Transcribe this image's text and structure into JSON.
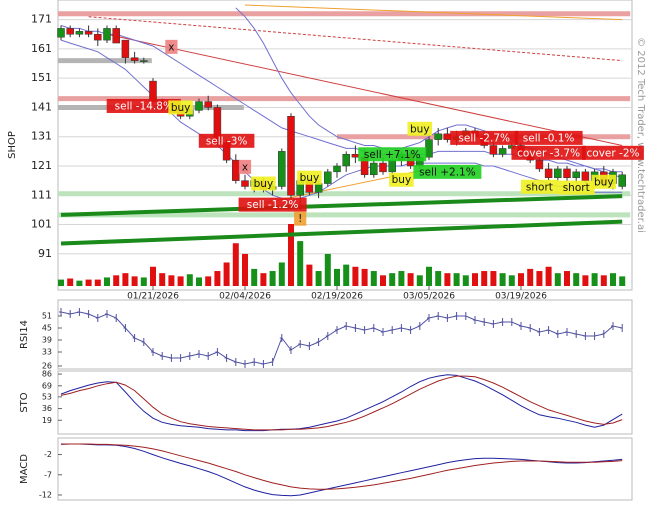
{
  "watermark": "© 2012 Tech Trader, www.techtrader.ai",
  "chart_data": [
    {
      "type": "candlestick",
      "ylabel": "SHOP",
      "categories": [
        null,
        null,
        null,
        null,
        null,
        null,
        null,
        null,
        null,
        null,
        "01/21/2026",
        null,
        null,
        null,
        null,
        null,
        null,
        null,
        null,
        null,
        "02/04/2026",
        null,
        null,
        null,
        null,
        null,
        null,
        null,
        null,
        null,
        "02/19/2026",
        null,
        null,
        null,
        null,
        null,
        null,
        null,
        null,
        null,
        "03/05/2026",
        null,
        null,
        null,
        null,
        null,
        null,
        null,
        null,
        null,
        "03/19/2026",
        null,
        null,
        null,
        null,
        null,
        null,
        null,
        null,
        null,
        null,
        null
      ],
      "open": [
        165,
        168,
        166,
        167,
        166,
        164,
        168,
        164,
        158,
        157,
        150,
        143,
        141,
        140,
        138,
        140,
        143,
        141,
        129,
        123,
        116,
        114,
        116,
        113,
        114,
        138,
        111,
        116,
        112,
        115,
        119,
        121,
        125,
        124,
        118,
        122,
        119,
        123,
        125,
        121,
        124,
        130,
        132,
        130,
        131,
        133,
        131,
        128,
        125,
        127,
        128,
        125,
        123,
        120,
        117,
        120,
        117,
        119,
        116,
        119,
        115,
        114
      ],
      "high": [
        169,
        169,
        168,
        169,
        168,
        169,
        169,
        164,
        160,
        158,
        151,
        144,
        143,
        142,
        141,
        144,
        145,
        142,
        130,
        125,
        118,
        117,
        117,
        115,
        127,
        139,
        117,
        117,
        116,
        120,
        122,
        126,
        128,
        127,
        123,
        124,
        124,
        126,
        126,
        125,
        131,
        134,
        134,
        133,
        134,
        134,
        133,
        129,
        128,
        129,
        129,
        126,
        124,
        122,
        121,
        121,
        120,
        120,
        120,
        121,
        120,
        119
      ],
      "low": [
        164,
        165,
        165,
        165,
        162,
        163,
        163,
        156,
        156,
        156,
        142,
        140,
        139,
        137,
        137,
        139,
        140,
        128,
        122,
        115,
        113,
        112,
        112,
        111,
        113,
        110,
        106,
        111,
        110,
        114,
        117,
        119,
        122,
        117,
        117,
        118,
        118,
        121,
        120,
        120,
        123,
        128,
        129,
        128,
        129,
        130,
        127,
        124,
        124,
        125,
        124,
        122,
        119,
        116,
        116,
        116,
        115,
        115,
        115,
        114,
        113,
        113
      ],
      "close": [
        168,
        166,
        167,
        166,
        164,
        168,
        163,
        158,
        157,
        157,
        143,
        141,
        140,
        138,
        140,
        143,
        141,
        129,
        123,
        116,
        114,
        116,
        113,
        114,
        126,
        111,
        116,
        112,
        115,
        119,
        121,
        125,
        124,
        118,
        122,
        119,
        123,
        125,
        121,
        124,
        130,
        132,
        130,
        131,
        133,
        131,
        128,
        125,
        127,
        128,
        125,
        123,
        120,
        117,
        120,
        117,
        119,
        116,
        119,
        115,
        119,
        118
      ],
      "volume": [
        6,
        7,
        5,
        6,
        6,
        8,
        10,
        12,
        9,
        8,
        18,
        12,
        10,
        9,
        11,
        8,
        9,
        14,
        22,
        40,
        30,
        16,
        12,
        14,
        22,
        58,
        42,
        20,
        14,
        30,
        16,
        20,
        18,
        16,
        14,
        10,
        12,
        14,
        12,
        10,
        18,
        14,
        12,
        12,
        10,
        12,
        14,
        14,
        12,
        10,
        12,
        16,
        14,
        18,
        12,
        14,
        12,
        10,
        12,
        10,
        12,
        9
      ],
      "up_color": "#17901a",
      "down_color": "#e01010",
      "ylim": [
        80,
        176
      ],
      "yticks": [
        91,
        101,
        111,
        121,
        131,
        141,
        151,
        161,
        171
      ],
      "grid": true,
      "levels": [
        {
          "price": 173,
          "color": "#e8a0a0",
          "from": 0,
          "to": 61
        },
        {
          "price": 144,
          "color": "#e8a0a0",
          "from": 0,
          "to": 61
        },
        {
          "price": 131,
          "color": "#e8a0a0",
          "from": 30,
          "to": 61
        },
        {
          "price": 157,
          "color": "#b4b4b4",
          "from": 0,
          "to": 9
        },
        {
          "price": 141,
          "color": "#b4b4b4",
          "from": 0,
          "to": 19
        },
        {
          "price": 111.5,
          "color": "#bde3bd",
          "from": 0,
          "to": 61
        },
        {
          "price": 104.3,
          "color": "#bde3bd",
          "from": 0,
          "to": 61
        }
      ],
      "trendlines": [
        {
          "start": [
            0,
            104.3
          ],
          "end": [
            61,
            110.7
          ],
          "color": "#1a8a1a",
          "style": "thick"
        },
        {
          "start": [
            0,
            94.5
          ],
          "end": [
            61,
            102
          ],
          "color": "#1a8a1a",
          "style": "thick"
        },
        {
          "start": [
            20,
            176
          ],
          "end": [
            61,
            171
          ],
          "color": "#f0a030",
          "style": "thin"
        },
        {
          "start": [
            20,
            107
          ],
          "end": [
            40,
            120
          ],
          "color": "#f0a030",
          "style": "thin"
        },
        {
          "start": [
            3,
            172
          ],
          "end": [
            61,
            157
          ],
          "color": "#d04040",
          "style": "dashed"
        },
        {
          "start": [
            5,
            166
          ],
          "end": [
            61,
            128
          ],
          "color": "#d04040",
          "style": "thin"
        }
      ],
      "bands": [
        {
          "color": "#7070d0",
          "values": [
            null,
            null,
            null,
            null,
            null,
            null,
            null,
            null,
            null,
            null,
            null,
            null,
            null,
            null,
            null,
            null,
            null,
            null,
            null,
            175,
            172,
            168,
            163,
            157,
            151,
            146,
            142,
            138,
            135,
            133,
            131,
            130,
            129,
            128,
            128,
            127,
            127,
            127,
            128,
            129,
            131,
            133,
            134,
            135,
            135,
            134,
            133,
            132,
            131,
            130,
            128,
            127,
            126,
            125,
            124,
            123,
            122,
            121,
            120,
            119,
            118,
            117
          ]
        },
        {
          "color": "#7070d0",
          "values": [
            169,
            168,
            168,
            167,
            167,
            166,
            166,
            165,
            164,
            163,
            162,
            160,
            158,
            156,
            154,
            152,
            150,
            148,
            146,
            144,
            142,
            140,
            138,
            136,
            134,
            133,
            132,
            131,
            130,
            129,
            128,
            127,
            127,
            126,
            126,
            125,
            125,
            125,
            125,
            125,
            125,
            126,
            126,
            126,
            126,
            126,
            126,
            125,
            125,
            125,
            124,
            124,
            123,
            123,
            122,
            122,
            121,
            121,
            120,
            120,
            119,
            119
          ]
        },
        {
          "color": "#7070d0",
          "values": [
            164,
            163,
            162,
            161,
            160,
            158,
            156,
            154,
            151,
            148,
            145,
            142,
            139,
            136,
            134,
            132,
            130,
            128,
            125,
            122,
            119,
            116,
            113,
            111,
            110,
            109,
            110,
            111,
            112,
            114,
            116,
            118,
            119,
            120,
            121,
            121,
            121,
            121,
            122,
            122,
            122,
            122,
            122,
            122,
            122,
            122,
            121,
            121,
            120,
            119,
            118,
            117,
            116,
            115,
            114,
            114,
            113,
            113,
            112,
            112,
            112,
            112
          ]
        }
      ],
      "annotations": [
        {
          "text": "x",
          "index": 12,
          "price": 161.7,
          "color": "#f08080"
        },
        {
          "text": "sell -14.8%",
          "index": 9,
          "price": 141.5,
          "color": "#e01010"
        },
        {
          "text": "buy",
          "index": 13,
          "price": 141,
          "color": "#f0f020"
        },
        {
          "text": "sell -3%",
          "index": 18,
          "price": 129.6,
          "color": "#e01010"
        },
        {
          "text": "x",
          "index": 20,
          "price": 120.7,
          "color": "#f08080"
        },
        {
          "text": "buy",
          "index": 22,
          "price": 115,
          "color": "#f0f020"
        },
        {
          "text": "sell -1.2%",
          "index": 23,
          "price": 107.8,
          "color": "#e01010"
        },
        {
          "text": "!",
          "index": 26,
          "price": 103,
          "color": "#f0a030"
        },
        {
          "text": "buy",
          "index": 27,
          "price": 117,
          "color": "#f0f020"
        },
        {
          "text": "sell +7.1%",
          "index": 36,
          "price": 125,
          "color": "#20d020"
        },
        {
          "text": "buy",
          "index": 37,
          "price": 116.3,
          "color": "#f0f020"
        },
        {
          "text": "buy",
          "index": 39,
          "price": 133.7,
          "color": "#f0f020"
        },
        {
          "text": "sell +2.1%",
          "index": 42,
          "price": 119,
          "color": "#20d020"
        },
        {
          "text": "sell -2.7%",
          "index": 46,
          "price": 130.6,
          "color": "#e01010"
        },
        {
          "text": "sell -0.1%",
          "index": 53,
          "price": 130.6,
          "color": "#e01010"
        },
        {
          "text": "cover -3.7%",
          "index": 53,
          "price": 125.5,
          "color": "#e01010"
        },
        {
          "text": "cover -2%",
          "index": 60,
          "price": 125.5,
          "color": "#e01010"
        },
        {
          "text": "short",
          "index": 52,
          "price": 113.9,
          "color": "#f0f020"
        },
        {
          "text": "short",
          "index": 56,
          "price": 113.6,
          "color": "#f0f020"
        },
        {
          "text": "buy",
          "index": 59,
          "price": 115.6,
          "color": "#f0f020"
        }
      ]
    },
    {
      "type": "line",
      "ylabel": "RSI14",
      "ylim": [
        25,
        58
      ],
      "yticks": [
        26,
        33,
        39,
        45,
        51
      ],
      "grid": false,
      "markers": true,
      "series": [
        {
          "color": "#5050a0",
          "values": [
            53,
            52,
            53,
            52,
            50,
            52,
            50,
            45,
            40,
            38,
            33,
            31,
            30,
            30,
            31,
            32,
            31,
            33,
            30,
            28,
            27,
            28,
            27,
            28,
            40,
            34,
            37,
            36,
            38,
            41,
            44,
            46,
            45,
            44,
            45,
            43,
            44,
            45,
            44,
            46,
            50,
            51,
            50,
            51,
            51,
            49,
            48,
            47,
            48,
            48,
            46,
            45,
            43,
            44,
            42,
            43,
            42,
            41,
            41,
            42,
            46,
            45
          ]
        }
      ]
    },
    {
      "type": "line",
      "ylabel": "STO",
      "ylim": [
        2,
        89
      ],
      "yticks": [
        19,
        36,
        53,
        69,
        86
      ],
      "grid": false,
      "markers": false,
      "series": [
        {
          "color": "#2020a0",
          "values": [
            57,
            62,
            66,
            70,
            73,
            75,
            74,
            60,
            45,
            32,
            22,
            16,
            13,
            11,
            10,
            9,
            7,
            6,
            5,
            5,
            4,
            4,
            4,
            5,
            6,
            6,
            7,
            9,
            12,
            15,
            18,
            22,
            28,
            34,
            40,
            46,
            53,
            60,
            68,
            75,
            80,
            83,
            85,
            84,
            80,
            76,
            70,
            63,
            56,
            48,
            40,
            33,
            27,
            24,
            22,
            19,
            16,
            12,
            9,
            12,
            20,
            28
          ]
        },
        {
          "color": "#a02020",
          "values": [
            55,
            58,
            62,
            65,
            69,
            72,
            74,
            70,
            62,
            50,
            38,
            28,
            22,
            17,
            14,
            12,
            10,
            9,
            8,
            7,
            6,
            5,
            5,
            5,
            5,
            6,
            6,
            7,
            8,
            10,
            13,
            16,
            20,
            25,
            31,
            37,
            43,
            50,
            57,
            64,
            70,
            76,
            80,
            83,
            83,
            82,
            78,
            73,
            67,
            60,
            53,
            46,
            40,
            34,
            30,
            26,
            22,
            18,
            15,
            13,
            15,
            20
          ]
        }
      ]
    },
    {
      "type": "line",
      "ylabel": "MACD",
      "ylim": [
        -12.5,
        1.6
      ],
      "yticks": [
        -12,
        -7,
        -2
      ],
      "grid": false,
      "markers": false,
      "series": [
        {
          "color": "#2020a0",
          "values": [
            0.5,
            0.6,
            0.6,
            0.5,
            0.4,
            0.4,
            0.3,
            0,
            -0.5,
            -1.2,
            -2,
            -2.8,
            -3.5,
            -4.2,
            -4.8,
            -5.5,
            -6.2,
            -7,
            -8,
            -9,
            -10,
            -10.8,
            -11.4,
            -11.9,
            -12.1,
            -12.2,
            -12,
            -11.5,
            -11,
            -10.5,
            -10,
            -9.5,
            -9,
            -8.5,
            -8,
            -7.5,
            -7,
            -6.5,
            -6,
            -5.5,
            -5,
            -4.5,
            -4,
            -3.6,
            -3.3,
            -3,
            -2.9,
            -2.9,
            -3,
            -3.1,
            -3.2,
            -3.4,
            -3.6,
            -3.8,
            -4,
            -4.1,
            -4.1,
            -4,
            -3.8,
            -3.6,
            -3.4,
            -3.2
          ]
        },
        {
          "color": "#a02020",
          "values": [
            0.6,
            0.6,
            0.6,
            0.6,
            0.5,
            0.5,
            0.4,
            0.3,
            0.1,
            -0.2,
            -0.6,
            -1.1,
            -1.7,
            -2.3,
            -2.9,
            -3.5,
            -4.1,
            -4.8,
            -5.5,
            -6.2,
            -7,
            -7.7,
            -8.4,
            -9,
            -9.5,
            -10,
            -10.3,
            -10.5,
            -10.6,
            -10.6,
            -10.5,
            -10.3,
            -10.1,
            -9.8,
            -9.5,
            -9.1,
            -8.7,
            -8.3,
            -7.9,
            -7.4,
            -6.9,
            -6.4,
            -5.9,
            -5.5,
            -5.1,
            -4.7,
            -4.4,
            -4.1,
            -3.9,
            -3.7,
            -3.6,
            -3.6,
            -3.6,
            -3.7,
            -3.8,
            -3.9,
            -3.9,
            -3.9,
            -3.9,
            -3.8,
            -3.7,
            -3.5
          ]
        }
      ]
    }
  ]
}
